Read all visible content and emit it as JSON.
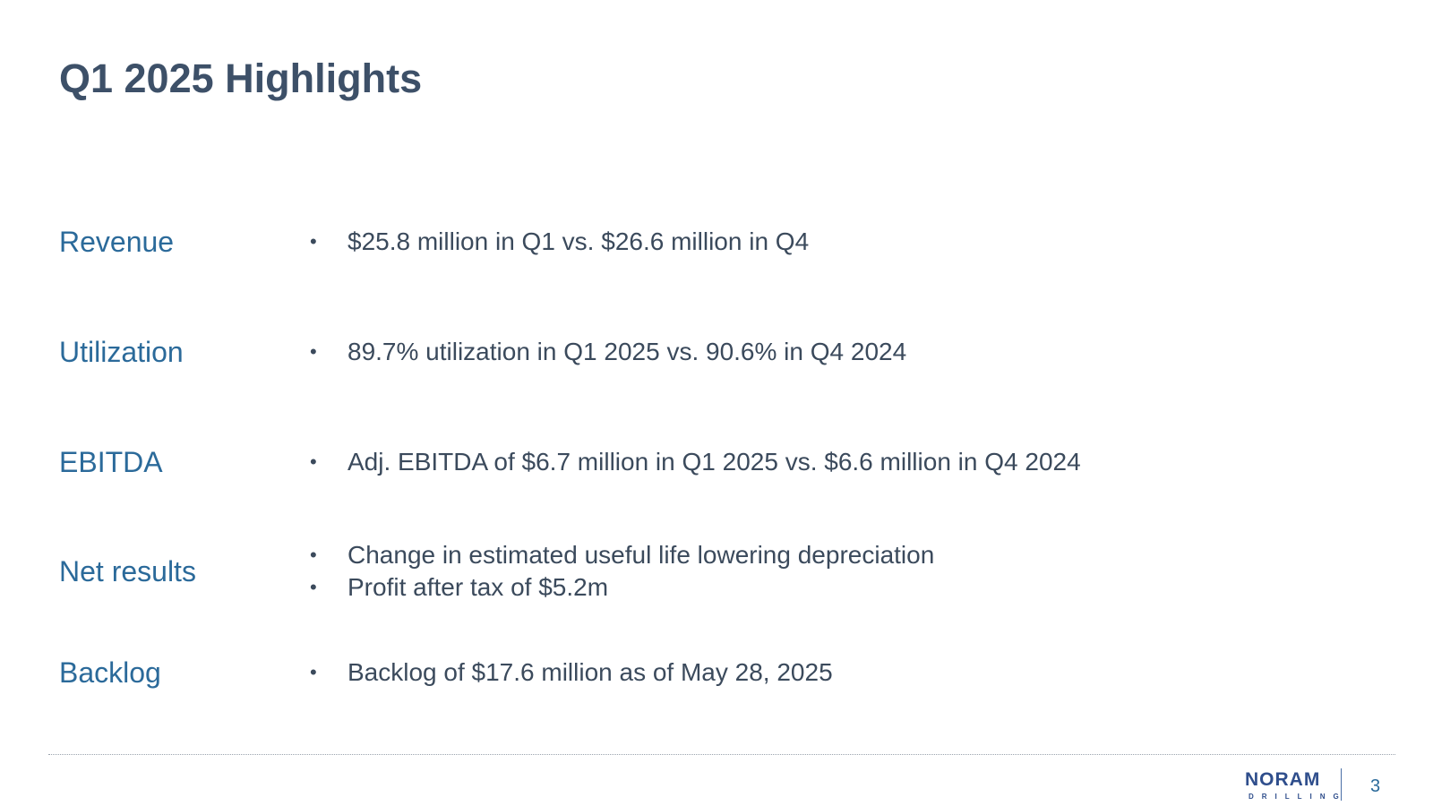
{
  "slide": {
    "title": "Q1 2025 Highlights",
    "page_number": "3"
  },
  "rows": [
    {
      "label": "Revenue",
      "bullets": [
        "$25.8 million in Q1 vs. $26.6 million in Q4"
      ]
    },
    {
      "label": "Utilization",
      "bullets": [
        "89.7% utilization in Q1 2025 vs. 90.6% in Q4 2024"
      ]
    },
    {
      "label": "EBITDA",
      "bullets": [
        "Adj. EBITDA of $6.7 million in Q1 2025 vs. $6.6 million in Q4 2024"
      ]
    },
    {
      "label": "Net results",
      "bullets": [
        "Change in estimated useful life lowering depreciation",
        "Profit after tax of $5.2m"
      ]
    },
    {
      "label": "Backlog",
      "bullets": [
        "Backlog of $17.6 million as of May 28, 2025"
      ]
    }
  ],
  "bullet_glyph": "•",
  "logo": {
    "main": "NORAM",
    "sub": "DRILLING"
  },
  "colors": {
    "title": "#3d5068",
    "label": "#2b6a9a",
    "body": "#3b4a5c",
    "logo": "#2f4e8c"
  }
}
